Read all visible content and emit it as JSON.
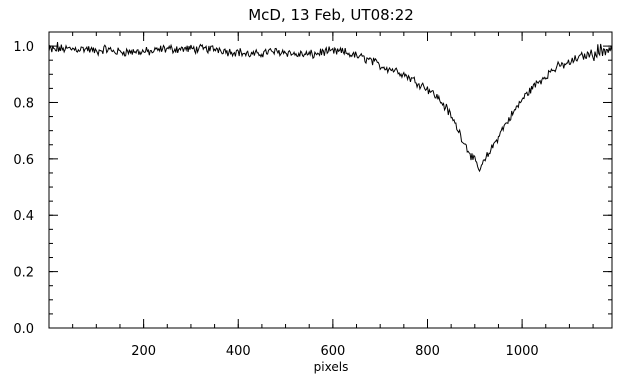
{
  "chart_data": {
    "type": "line",
    "title": "McD, 13 Feb, UT08:22",
    "xlabel": "pixels",
    "ylabel": "",
    "xlim": [
      0,
      1190
    ],
    "ylim": [
      0.0,
      1.05
    ],
    "grid": false,
    "legend": "none",
    "x_ticks": [
      200,
      400,
      600,
      800,
      1000
    ],
    "x_tick_labels": [
      "200",
      "400",
      "600",
      "800",
      "1000"
    ],
    "x_minor_step": 50,
    "y_ticks": [
      0.0,
      0.2,
      0.4,
      0.6,
      0.8,
      1.0
    ],
    "y_tick_labels": [
      "0.0",
      "0.2",
      "0.4",
      "0.6",
      "0.8",
      "1.0"
    ],
    "y_minor_step": 0.05,
    "line_color": "#000000",
    "series": [
      {
        "x": [
          0,
          20,
          40,
          60,
          80,
          100,
          120,
          140,
          160,
          180,
          200,
          220,
          240,
          260,
          280,
          300,
          320,
          340,
          360,
          380,
          400,
          420,
          440,
          460,
          480,
          500,
          520,
          540,
          560,
          580,
          600,
          620,
          640,
          660,
          680,
          700,
          720,
          740,
          760,
          780,
          800,
          820,
          840,
          860,
          880,
          890,
          900,
          910,
          920,
          940,
          960,
          980,
          1000,
          1020,
          1040,
          1060,
          1080,
          1100,
          1120,
          1140,
          1160,
          1180,
          1190
        ],
        "values": [
          0.98,
          0.99,
          0.99,
          0.99,
          0.99,
          0.98,
          0.99,
          0.98,
          0.98,
          0.98,
          0.98,
          0.98,
          0.99,
          0.99,
          0.99,
          0.99,
          0.99,
          0.99,
          0.99,
          0.98,
          0.98,
          0.97,
          0.97,
          0.98,
          0.98,
          0.98,
          0.97,
          0.97,
          0.97,
          0.98,
          0.98,
          0.98,
          0.97,
          0.96,
          0.95,
          0.93,
          0.92,
          0.91,
          0.89,
          0.87,
          0.85,
          0.82,
          0.78,
          0.72,
          0.65,
          0.62,
          0.59,
          0.56,
          0.59,
          0.65,
          0.71,
          0.76,
          0.81,
          0.85,
          0.88,
          0.91,
          0.93,
          0.94,
          0.96,
          0.97,
          0.98,
          0.99,
          0.99
        ]
      }
    ]
  }
}
